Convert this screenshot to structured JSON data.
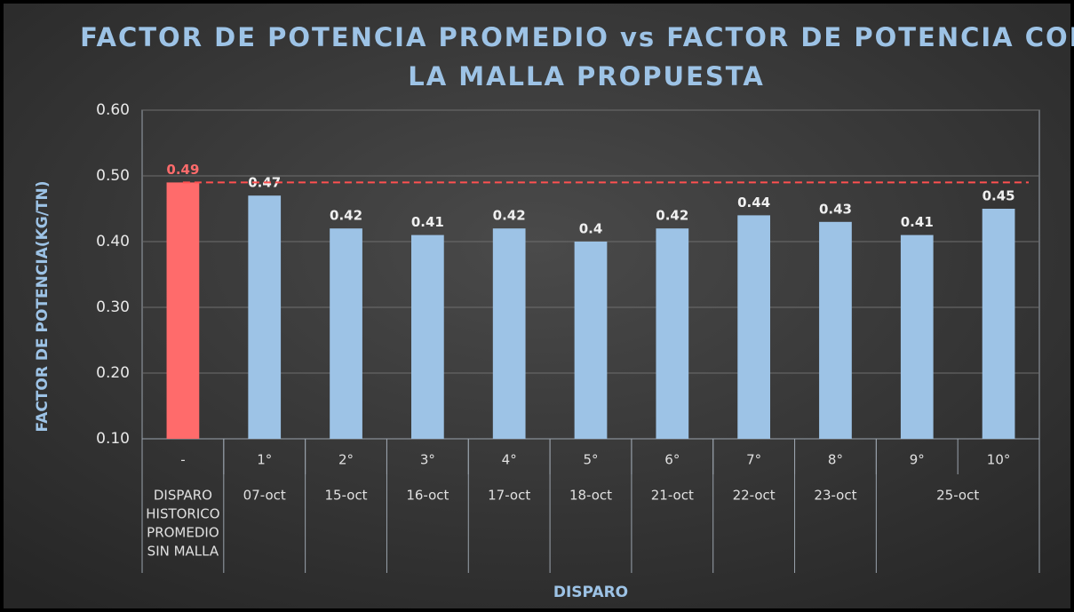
{
  "chart_data": {
    "type": "bar",
    "title": [
      "FACTOR DE POTENCIA PROMEDIO vs FACTOR DE POTENCIA CON",
      "LA MALLA PROPUESTA"
    ],
    "y_label": "FACTOR DE POTENCIA(KG/TN)",
    "x_label": "DISPARO",
    "categories": [
      "-",
      "1°",
      "2°",
      "3°",
      "4°",
      "5°",
      "6°",
      "7°",
      "8°",
      "9°",
      "10°"
    ],
    "groups": [
      {
        "label": [
          "DISPARO",
          "HISTORICO",
          "PROMEDIO",
          "SIN MALLA"
        ],
        "span": 1
      },
      {
        "label": [
          "07-oct"
        ],
        "span": 1
      },
      {
        "label": [
          "15-oct"
        ],
        "span": 1
      },
      {
        "label": [
          "16-oct"
        ],
        "span": 1
      },
      {
        "label": [
          "17-oct"
        ],
        "span": 1
      },
      {
        "label": [
          "18-oct"
        ],
        "span": 1
      },
      {
        "label": [
          "21-oct"
        ],
        "span": 1
      },
      {
        "label": [
          "22-oct"
        ],
        "span": 1
      },
      {
        "label": [
          "23-oct"
        ],
        "span": 1
      },
      {
        "label": [
          "25-oct"
        ],
        "span": 2
      }
    ],
    "values": [
      0.49,
      0.47,
      0.42,
      0.41,
      0.42,
      0.4,
      0.42,
      0.44,
      0.43,
      0.41,
      0.45
    ],
    "colors": [
      "#ff6b6b",
      "#9dc3e6",
      "#9dc3e6",
      "#9dc3e6",
      "#9dc3e6",
      "#9dc3e6",
      "#9dc3e6",
      "#9dc3e6",
      "#9dc3e6",
      "#9dc3e6",
      "#9dc3e6"
    ],
    "reference_line": {
      "value": 0.49,
      "color": "#ff5050"
    },
    "ylim": [
      0.1,
      0.6
    ],
    "yticks": [
      {
        "value": 0.1,
        "label": "0.10"
      },
      {
        "value": 0.2,
        "label": "0.20"
      },
      {
        "value": 0.3,
        "label": "0.30"
      },
      {
        "value": 0.4,
        "label": "0.40"
      },
      {
        "value": 0.5,
        "label": "0.50"
      },
      {
        "value": 0.6,
        "label": "0.60"
      }
    ],
    "grid": true
  }
}
